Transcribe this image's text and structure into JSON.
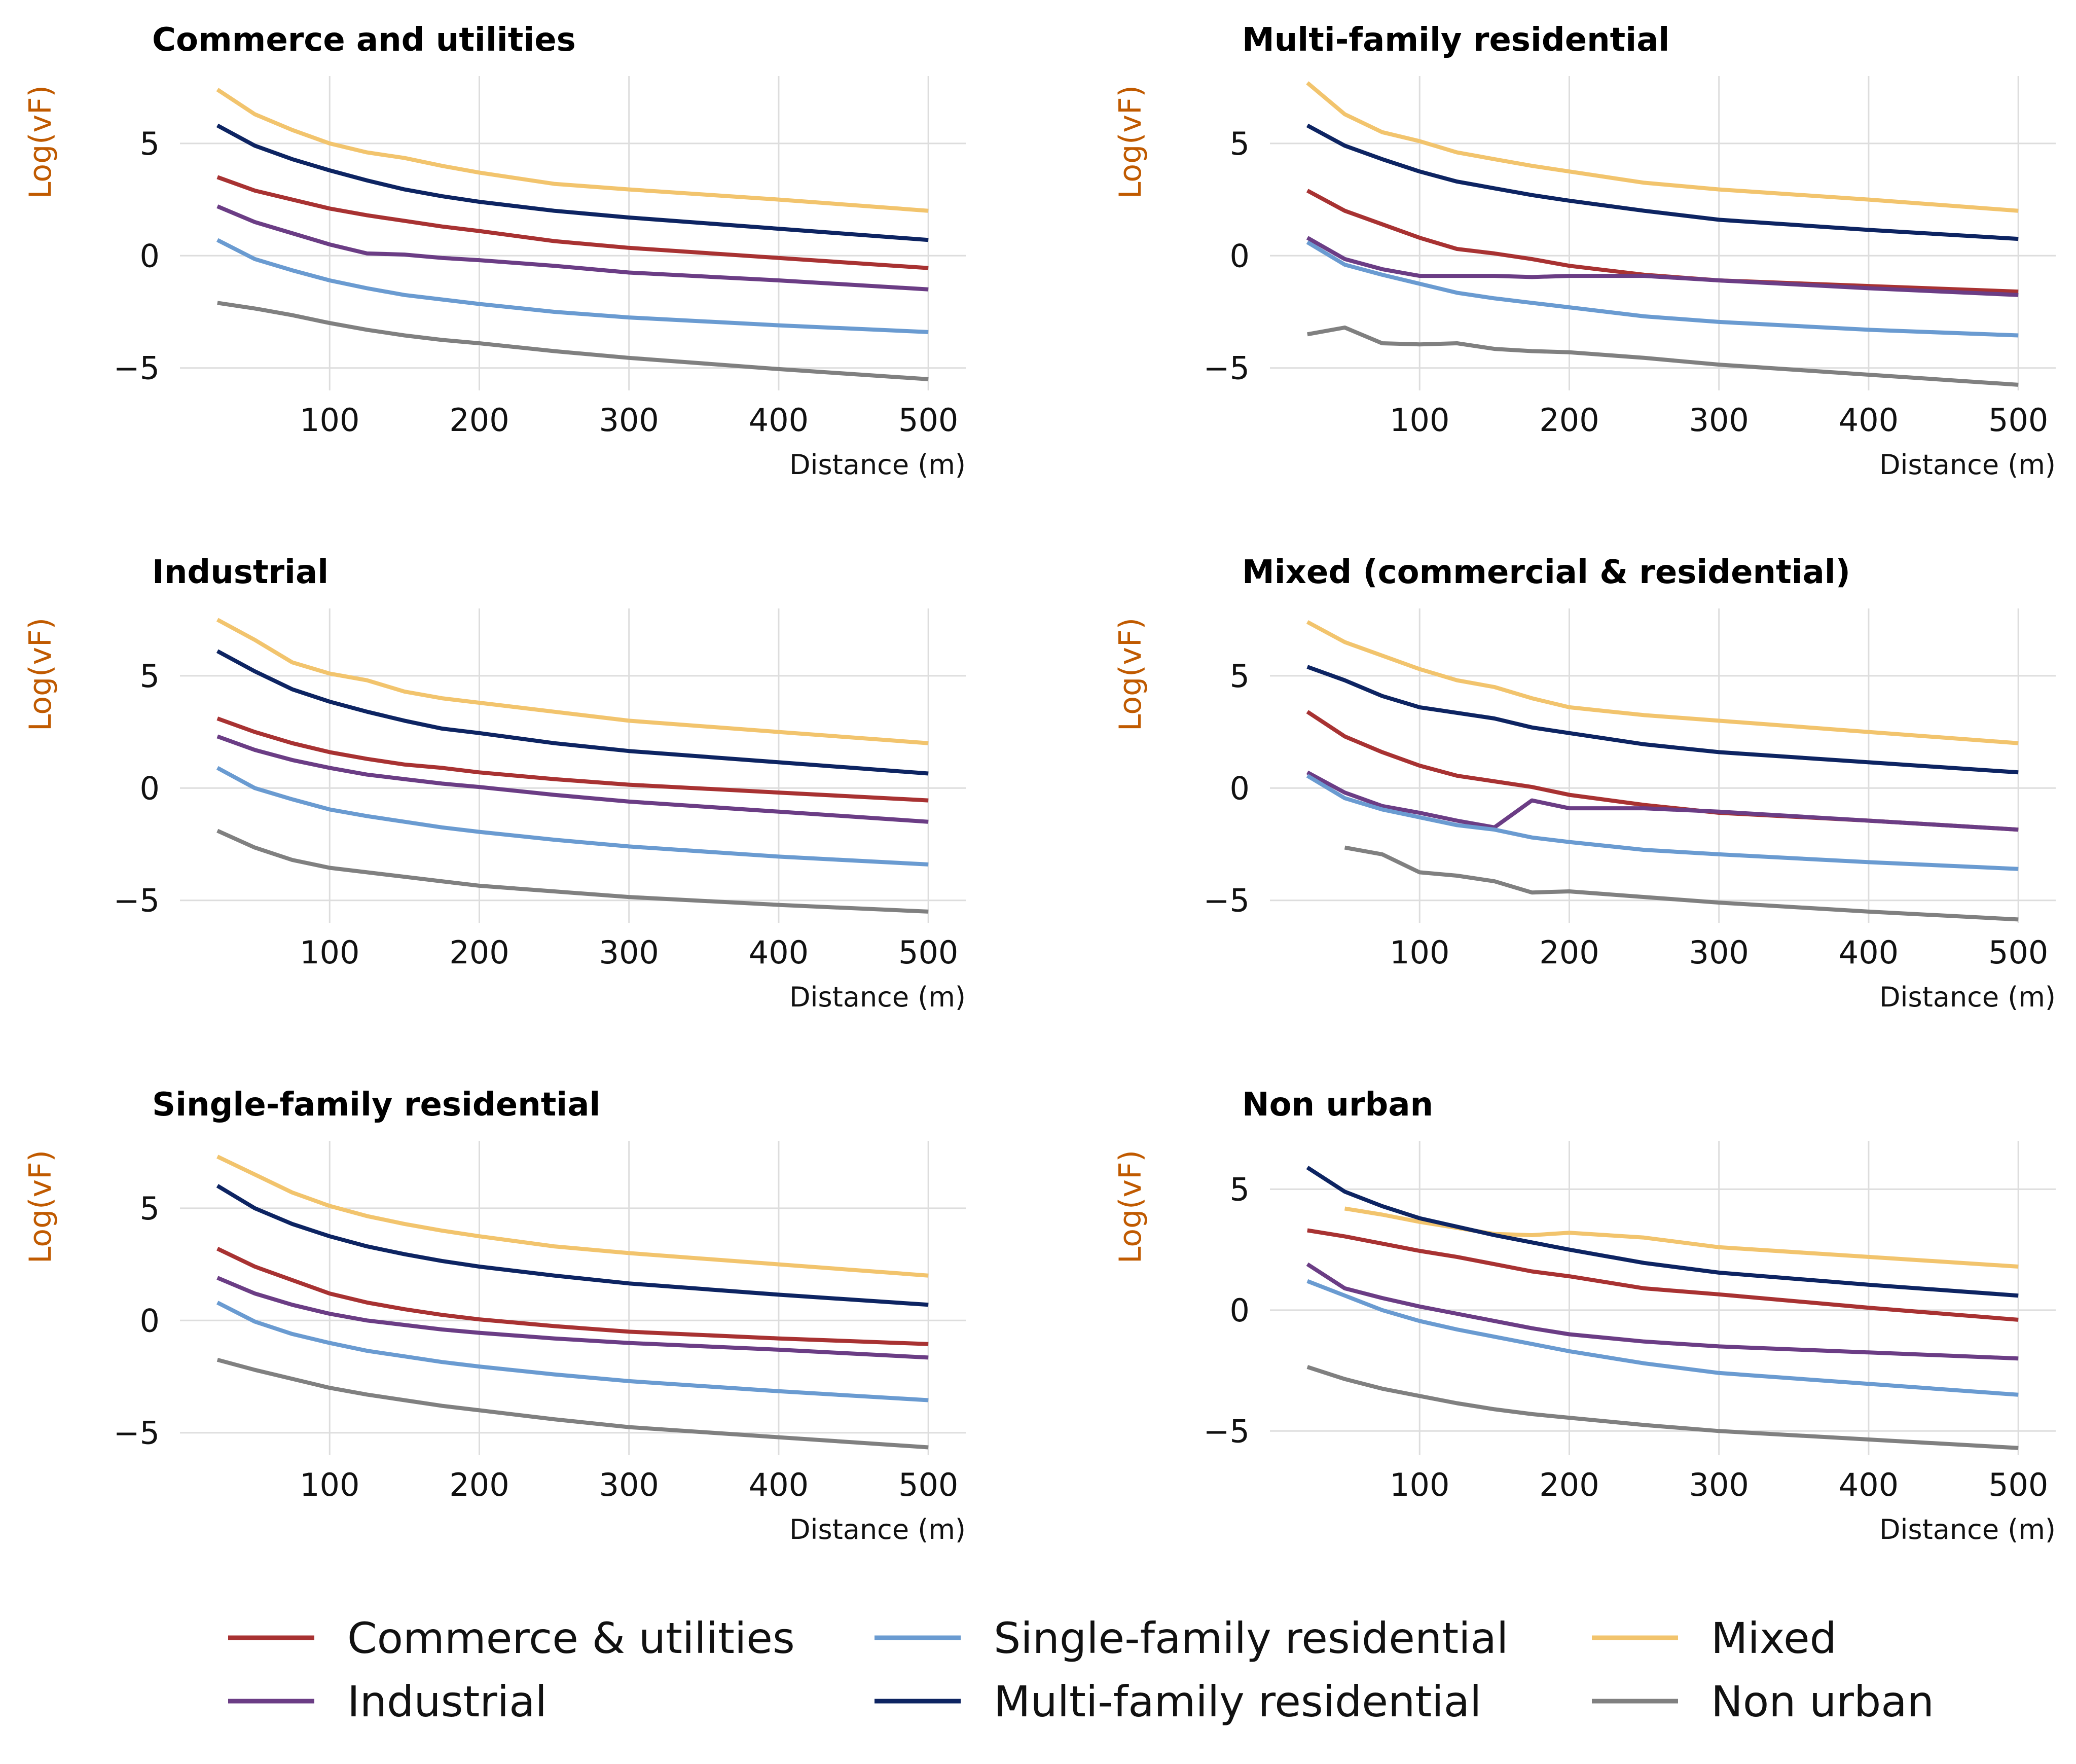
{
  "colors": {
    "Commerce & utilities": "#a83232",
    "Industrial": "#6b3d85",
    "Single-family residential": "#6a9bd1",
    "Multi-family residential": "#0d2462",
    "Mixed": "#f2c46d",
    "Non urban": "#808080",
    "ylabel": "#c05a00",
    "grid": "#dddddd"
  },
  "legend": {
    "placement": "bottom-center",
    "entries": [
      "Commerce & utilities",
      "Industrial",
      "Single-family residential",
      "Multi-family residential",
      "Mixed",
      "Non urban"
    ]
  },
  "chart_data": [
    {
      "type": "line",
      "title": "Commerce and utilities",
      "xlabel": "Distance (m)",
      "ylabel": "Log(vF)",
      "xlim": [
        0,
        525
      ],
      "ylim": [
        -6,
        8
      ],
      "xticks": [
        100,
        200,
        300,
        400,
        500
      ],
      "yticks": [
        -5,
        0,
        5
      ],
      "grid": true,
      "x": [
        25,
        50,
        75,
        100,
        125,
        150,
        175,
        200,
        250,
        300,
        400,
        500
      ],
      "series": [
        {
          "name": "Mixed",
          "values": [
            7.4,
            6.3,
            5.6,
            5.0,
            4.6,
            4.35,
            4.0,
            3.7,
            3.2,
            2.95,
            2.5,
            2.0
          ]
        },
        {
          "name": "Multi-family residential",
          "values": [
            5.8,
            4.9,
            4.3,
            3.8,
            3.35,
            2.95,
            2.65,
            2.4,
            2.0,
            1.7,
            1.2,
            0.7
          ]
        },
        {
          "name": "Commerce & utilities",
          "values": [
            3.5,
            2.9,
            2.5,
            2.1,
            1.8,
            1.55,
            1.3,
            1.1,
            0.65,
            0.35,
            -0.1,
            -0.55
          ]
        },
        {
          "name": "Industrial",
          "values": [
            2.2,
            1.5,
            1.0,
            0.5,
            0.1,
            0.05,
            -0.1,
            -0.2,
            -0.45,
            -0.75,
            -1.1,
            -1.5
          ]
        },
        {
          "name": "Single-family residential",
          "values": [
            0.7,
            -0.15,
            -0.65,
            -1.1,
            -1.45,
            -1.75,
            -1.95,
            -2.15,
            -2.5,
            -2.75,
            -3.1,
            -3.4
          ]
        },
        {
          "name": "Non urban",
          "values": [
            -2.1,
            -2.35,
            -2.65,
            -3.0,
            -3.3,
            -3.55,
            -3.75,
            -3.9,
            -4.25,
            -4.55,
            -5.05,
            -5.5
          ]
        }
      ]
    },
    {
      "type": "line",
      "title": "Multi-family residential",
      "xlabel": "Distance (m)",
      "ylabel": "Log(vF)",
      "xlim": [
        0,
        525
      ],
      "ylim": [
        -6,
        8
      ],
      "xticks": [
        100,
        200,
        300,
        400,
        500
      ],
      "yticks": [
        -5,
        0,
        5
      ],
      "grid": true,
      "x": [
        25,
        50,
        75,
        100,
        125,
        150,
        175,
        200,
        250,
        300,
        400,
        500
      ],
      "series": [
        {
          "name": "Mixed",
          "values": [
            7.7,
            6.3,
            5.5,
            5.1,
            4.6,
            4.3,
            4.0,
            3.75,
            3.25,
            2.95,
            2.5,
            2.0
          ]
        },
        {
          "name": "Multi-family residential",
          "values": [
            5.8,
            4.9,
            4.3,
            3.75,
            3.3,
            3.0,
            2.7,
            2.45,
            2.0,
            1.6,
            1.15,
            0.75
          ]
        },
        {
          "name": "Commerce & utilities",
          "values": [
            2.9,
            2.0,
            1.4,
            0.8,
            0.3,
            0.1,
            -0.15,
            -0.45,
            -0.85,
            -1.1,
            -1.35,
            -1.6
          ]
        },
        {
          "name": "Industrial",
          "values": [
            0.8,
            -0.15,
            -0.6,
            -0.9,
            -0.9,
            -0.9,
            -0.95,
            -0.9,
            -0.9,
            -1.1,
            -1.45,
            -1.75
          ]
        },
        {
          "name": "Single-family residential",
          "values": [
            0.6,
            -0.4,
            -0.85,
            -1.25,
            -1.65,
            -1.9,
            -2.1,
            -2.3,
            -2.7,
            -2.95,
            -3.3,
            -3.55
          ]
        },
        {
          "name": "Non urban",
          "values": [
            -3.5,
            -3.2,
            -3.9,
            -3.95,
            -3.9,
            -4.15,
            -4.25,
            -4.3,
            -4.55,
            -4.85,
            -5.3,
            -5.75
          ]
        }
      ]
    },
    {
      "type": "line",
      "title": "Industrial",
      "xlabel": "Distance (m)",
      "ylabel": "Log(vF)",
      "xlim": [
        0,
        525
      ],
      "ylim": [
        -6,
        8
      ],
      "xticks": [
        100,
        200,
        300,
        400,
        500
      ],
      "yticks": [
        -5,
        0,
        5
      ],
      "grid": true,
      "x": [
        25,
        50,
        75,
        100,
        125,
        150,
        175,
        200,
        250,
        300,
        400,
        500
      ],
      "series": [
        {
          "name": "Mixed",
          "values": [
            7.5,
            6.6,
            5.6,
            5.1,
            4.8,
            4.3,
            4.0,
            3.8,
            3.4,
            3.0,
            2.5,
            2.0
          ]
        },
        {
          "name": "Multi-family residential",
          "values": [
            6.1,
            5.2,
            4.4,
            3.85,
            3.4,
            3.0,
            2.65,
            2.45,
            2.0,
            1.65,
            1.15,
            0.65
          ]
        },
        {
          "name": "Commerce & utilities",
          "values": [
            3.1,
            2.5,
            2.0,
            1.6,
            1.3,
            1.05,
            0.9,
            0.7,
            0.4,
            0.15,
            -0.2,
            -0.55
          ]
        },
        {
          "name": "Industrial",
          "values": [
            2.3,
            1.7,
            1.25,
            0.9,
            0.6,
            0.4,
            0.2,
            0.05,
            -0.3,
            -0.6,
            -1.05,
            -1.5
          ]
        },
        {
          "name": "Single-family residential",
          "values": [
            0.9,
            0.0,
            -0.5,
            -0.95,
            -1.25,
            -1.5,
            -1.75,
            -1.95,
            -2.3,
            -2.6,
            -3.05,
            -3.4
          ]
        },
        {
          "name": "Non urban",
          "values": [
            -1.9,
            -2.65,
            -3.2,
            -3.55,
            -3.75,
            -3.95,
            -4.15,
            -4.35,
            -4.6,
            -4.85,
            -5.2,
            -5.5
          ]
        }
      ]
    },
    {
      "type": "line",
      "title": "Mixed (commercial & residential)",
      "xlabel": "Distance (m)",
      "ylabel": "Log(vF)",
      "xlim": [
        0,
        525
      ],
      "ylim": [
        -6,
        8
      ],
      "xticks": [
        100,
        200,
        300,
        400,
        500
      ],
      "yticks": [
        -5,
        0,
        5
      ],
      "grid": true,
      "x": [
        25,
        50,
        75,
        100,
        125,
        150,
        175,
        200,
        250,
        300,
        400,
        500
      ],
      "series": [
        {
          "name": "Mixed",
          "values": [
            7.4,
            6.5,
            5.9,
            5.3,
            4.8,
            4.5,
            4.0,
            3.6,
            3.25,
            3.0,
            2.5,
            2.0
          ]
        },
        {
          "name": "Multi-family residential",
          "values": [
            5.4,
            4.8,
            4.1,
            3.6,
            3.35,
            3.1,
            2.7,
            2.45,
            1.95,
            1.6,
            1.15,
            0.7
          ]
        },
        {
          "name": "Commerce & utilities",
          "values": [
            3.4,
            2.3,
            1.6,
            1.0,
            0.55,
            0.3,
            0.05,
            -0.3,
            -0.75,
            -1.1,
            -1.45,
            -1.85
          ]
        },
        {
          "name": "Industrial",
          "values": [
            0.7,
            -0.2,
            -0.8,
            -1.1,
            -1.45,
            -1.75,
            -0.55,
            -0.9,
            -0.9,
            -1.05,
            -1.45,
            -1.85
          ]
        },
        {
          "name": "Single-family residential",
          "values": [
            0.55,
            -0.45,
            -0.95,
            -1.3,
            -1.65,
            -1.85,
            -2.2,
            -2.4,
            -2.75,
            -2.95,
            -3.3,
            -3.6
          ]
        },
        {
          "name": "Non urban",
          "values": [
            null,
            -2.65,
            -2.95,
            -3.75,
            -3.9,
            -4.15,
            -4.65,
            -4.6,
            -4.85,
            -5.1,
            -5.5,
            -5.85
          ]
        }
      ]
    },
    {
      "type": "line",
      "title": "Single-family residential",
      "xlabel": "Distance (m)",
      "ylabel": "Log(vF)",
      "xlim": [
        0,
        525
      ],
      "ylim": [
        -6,
        8
      ],
      "xticks": [
        100,
        200,
        300,
        400,
        500
      ],
      "yticks": [
        -5,
        0,
        5
      ],
      "grid": true,
      "x": [
        25,
        50,
        75,
        100,
        125,
        150,
        175,
        200,
        250,
        300,
        400,
        500
      ],
      "series": [
        {
          "name": "Mixed",
          "values": [
            7.3,
            6.5,
            5.7,
            5.1,
            4.65,
            4.3,
            4.0,
            3.75,
            3.3,
            3.0,
            2.5,
            2.0
          ]
        },
        {
          "name": "Multi-family residential",
          "values": [
            6.0,
            5.0,
            4.3,
            3.75,
            3.3,
            2.95,
            2.65,
            2.4,
            2.0,
            1.65,
            1.15,
            0.7
          ]
        },
        {
          "name": "Commerce & utilities",
          "values": [
            3.2,
            2.4,
            1.8,
            1.2,
            0.8,
            0.5,
            0.25,
            0.05,
            -0.25,
            -0.5,
            -0.8,
            -1.05
          ]
        },
        {
          "name": "Industrial",
          "values": [
            1.9,
            1.2,
            0.7,
            0.3,
            0.0,
            -0.2,
            -0.4,
            -0.55,
            -0.8,
            -1.0,
            -1.3,
            -1.65
          ]
        },
        {
          "name": "Single-family residential",
          "values": [
            0.8,
            -0.05,
            -0.6,
            -1.0,
            -1.35,
            -1.6,
            -1.85,
            -2.05,
            -2.4,
            -2.7,
            -3.15,
            -3.55
          ]
        },
        {
          "name": "Non urban",
          "values": [
            -1.75,
            -2.2,
            -2.6,
            -3.0,
            -3.3,
            -3.55,
            -3.8,
            -4.0,
            -4.4,
            -4.75,
            -5.2,
            -5.65
          ]
        }
      ]
    },
    {
      "type": "line",
      "title": "Non urban",
      "xlabel": "Distance (m)",
      "ylabel": "Log(vF)",
      "xlim": [
        0,
        525
      ],
      "ylim": [
        -6,
        7
      ],
      "xticks": [
        100,
        200,
        300,
        400,
        500
      ],
      "yticks": [
        -5,
        0,
        5
      ],
      "grid": true,
      "x": [
        25,
        50,
        75,
        100,
        125,
        150,
        175,
        200,
        250,
        300,
        400,
        500
      ],
      "series": [
        {
          "name": "Mixed",
          "values": [
            null,
            4.2,
            3.95,
            3.65,
            3.4,
            3.15,
            3.1,
            3.2,
            3.0,
            2.6,
            2.2,
            1.8
          ]
        },
        {
          "name": "Multi-family residential",
          "values": [
            5.9,
            4.9,
            4.3,
            3.8,
            3.45,
            3.1,
            2.8,
            2.5,
            1.95,
            1.55,
            1.05,
            0.6
          ]
        },
        {
          "name": "Commerce & utilities",
          "values": [
            3.3,
            3.05,
            2.75,
            2.45,
            2.2,
            1.9,
            1.6,
            1.4,
            0.9,
            0.65,
            0.1,
            -0.4
          ]
        },
        {
          "name": "Industrial",
          "values": [
            1.9,
            0.9,
            0.5,
            0.15,
            -0.15,
            -0.45,
            -0.75,
            -1.0,
            -1.3,
            -1.5,
            -1.75,
            -2.0
          ]
        },
        {
          "name": "Single-family residential",
          "values": [
            1.2,
            0.6,
            0.0,
            -0.45,
            -0.8,
            -1.1,
            -1.4,
            -1.7,
            -2.2,
            -2.6,
            -3.05,
            -3.5
          ]
        },
        {
          "name": "Non urban",
          "values": [
            -2.35,
            -2.85,
            -3.25,
            -3.55,
            -3.85,
            -4.1,
            -4.3,
            -4.45,
            -4.75,
            -5.0,
            -5.35,
            -5.7
          ]
        }
      ]
    }
  ]
}
